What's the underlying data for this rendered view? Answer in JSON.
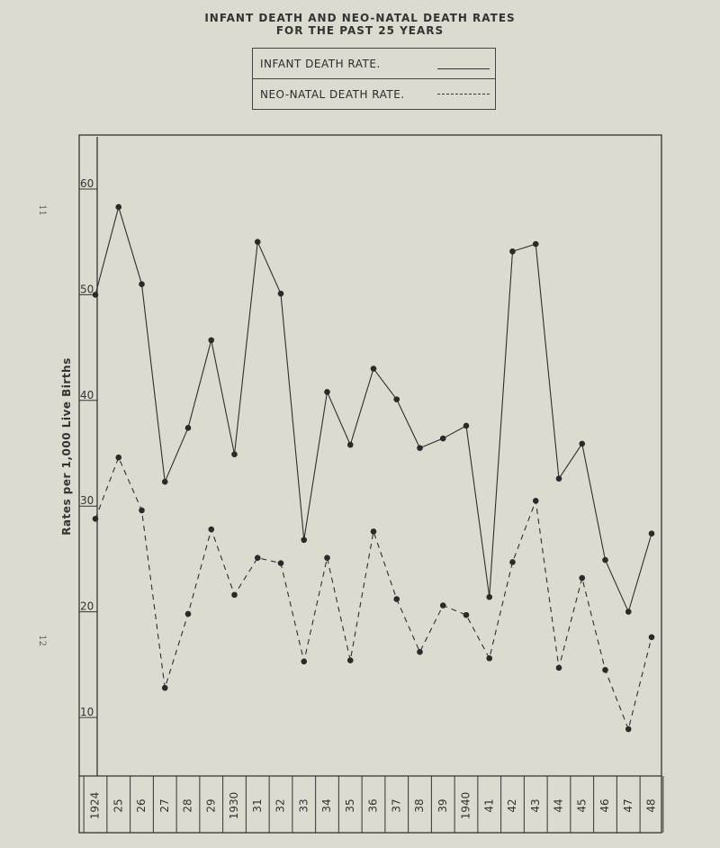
{
  "page_numbers": [
    "11",
    "12"
  ],
  "chart_data": {
    "type": "line",
    "title": "INFANT DEATH AND NEO-NATAL DEATH RATES",
    "subtitle": "FOR THE PAST 25 YEARS",
    "ylabel": "Rates per 1,000 Live Births",
    "xlabel": "",
    "ylim": [
      4,
      64
    ],
    "yticks": [
      10,
      20,
      30,
      40,
      50,
      60
    ],
    "ytick_labels": [
      "10",
      "20",
      "30",
      "40",
      "50",
      "60"
    ],
    "categories": [
      "1924",
      "25",
      "26",
      "27",
      "28",
      "29",
      "1930",
      "31",
      "32",
      "33",
      "34",
      "35",
      "36",
      "37",
      "38",
      "39",
      "1940",
      "41",
      "42",
      "43",
      "44",
      "45",
      "46",
      "47",
      "48"
    ],
    "legend": {
      "placement": "top-center",
      "entries": [
        {
          "label": "INFANT DEATH RATE.",
          "style": "solid"
        },
        {
          "label": "NEO-NATAL DEATH RATE.",
          "style": "dashed"
        }
      ]
    },
    "series": [
      {
        "name": "INFANT DEATH RATE.",
        "style": "solid",
        "values": [
          50.0,
          58.3,
          51.0,
          32.3,
          37.4,
          45.7,
          34.9,
          55.0,
          50.1,
          26.8,
          40.8,
          35.8,
          43.0,
          40.1,
          35.5,
          36.4,
          37.6,
          21.4,
          54.1,
          54.8,
          32.6,
          35.9,
          24.9,
          20.0,
          27.4
        ]
      },
      {
        "name": "NEO-NATAL DEATH RATE.",
        "style": "dashed",
        "values": [
          28.8,
          34.6,
          29.6,
          12.8,
          19.8,
          27.8,
          21.6,
          25.1,
          24.6,
          15.3,
          25.1,
          15.4,
          27.6,
          21.2,
          16.2,
          20.6,
          19.7,
          15.6,
          24.7,
          30.5,
          14.7,
          23.2,
          14.5,
          8.9,
          17.6
        ]
      }
    ]
  }
}
